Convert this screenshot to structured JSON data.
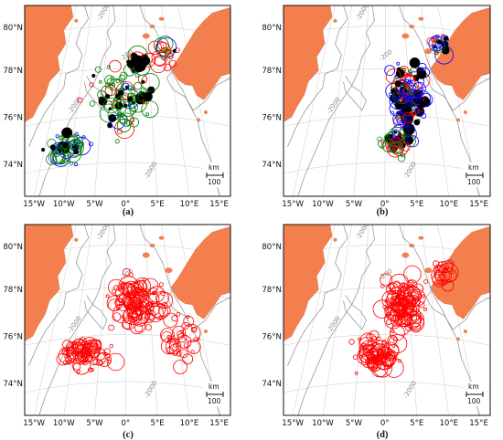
{
  "figure": {
    "panels": [
      {
        "id": "a",
        "caption": "(a)",
        "lat_labels": [
          "80°N",
          "78°N",
          "76°N",
          "74°N"
        ],
        "lon_labels": [
          "15°W",
          "10°W",
          "5°W",
          "0°",
          "5°E",
          "10°E",
          "15°E"
        ],
        "contours": [
          "-2000",
          "-200",
          "-2000",
          "-2000"
        ],
        "scale_unit": "km",
        "scale_value": "100",
        "marker_colors": [
          "#000000",
          "#0000ff",
          "#ff0000",
          "#008000"
        ]
      },
      {
        "id": "b",
        "caption": "(b)",
        "lat_labels": [
          "80°N",
          "78°N",
          "76°N",
          "74°N"
        ],
        "lon_labels": [
          "15°W",
          "10°W",
          "5°W",
          "0°",
          "5°E",
          "10°E",
          "15°E"
        ],
        "contours": [
          "-2000",
          "-200",
          "-2000",
          "-2000"
        ],
        "scale_unit": "km",
        "scale_value": "100",
        "marker_colors": [
          "#000000",
          "#0000ff",
          "#ff0000",
          "#008000"
        ]
      },
      {
        "id": "c",
        "caption": "(c)",
        "lat_labels": [
          "80°N",
          "78°N",
          "76°N",
          "74°N"
        ],
        "lon_labels": [
          "15°W",
          "10°W",
          "5°W",
          "0°",
          "5°E",
          "10°E",
          "15°E"
        ],
        "contours": [
          "-2000",
          "-200",
          "-2000",
          "-2000"
        ],
        "scale_unit": "km",
        "scale_value": "100",
        "marker_colors": [
          "#0000ff",
          "#ff0000"
        ]
      },
      {
        "id": "d",
        "caption": "(d)",
        "lat_labels": [
          "80°N",
          "78°N",
          "76°N",
          "74°N"
        ],
        "lon_labels": [
          "15°W",
          "10°W",
          "5°W",
          "0°",
          "5°E",
          "10°E",
          "15°E"
        ],
        "contours": [
          "-2000",
          "-200",
          "-2000",
          "-2000"
        ],
        "scale_unit": "km",
        "scale_value": "100",
        "marker_colors": [
          "#0000ff",
          "#ff0000"
        ]
      }
    ],
    "land_color": "#f47f4e",
    "contour_color": "#9a9a9a",
    "grid_color": "#cccccc"
  }
}
